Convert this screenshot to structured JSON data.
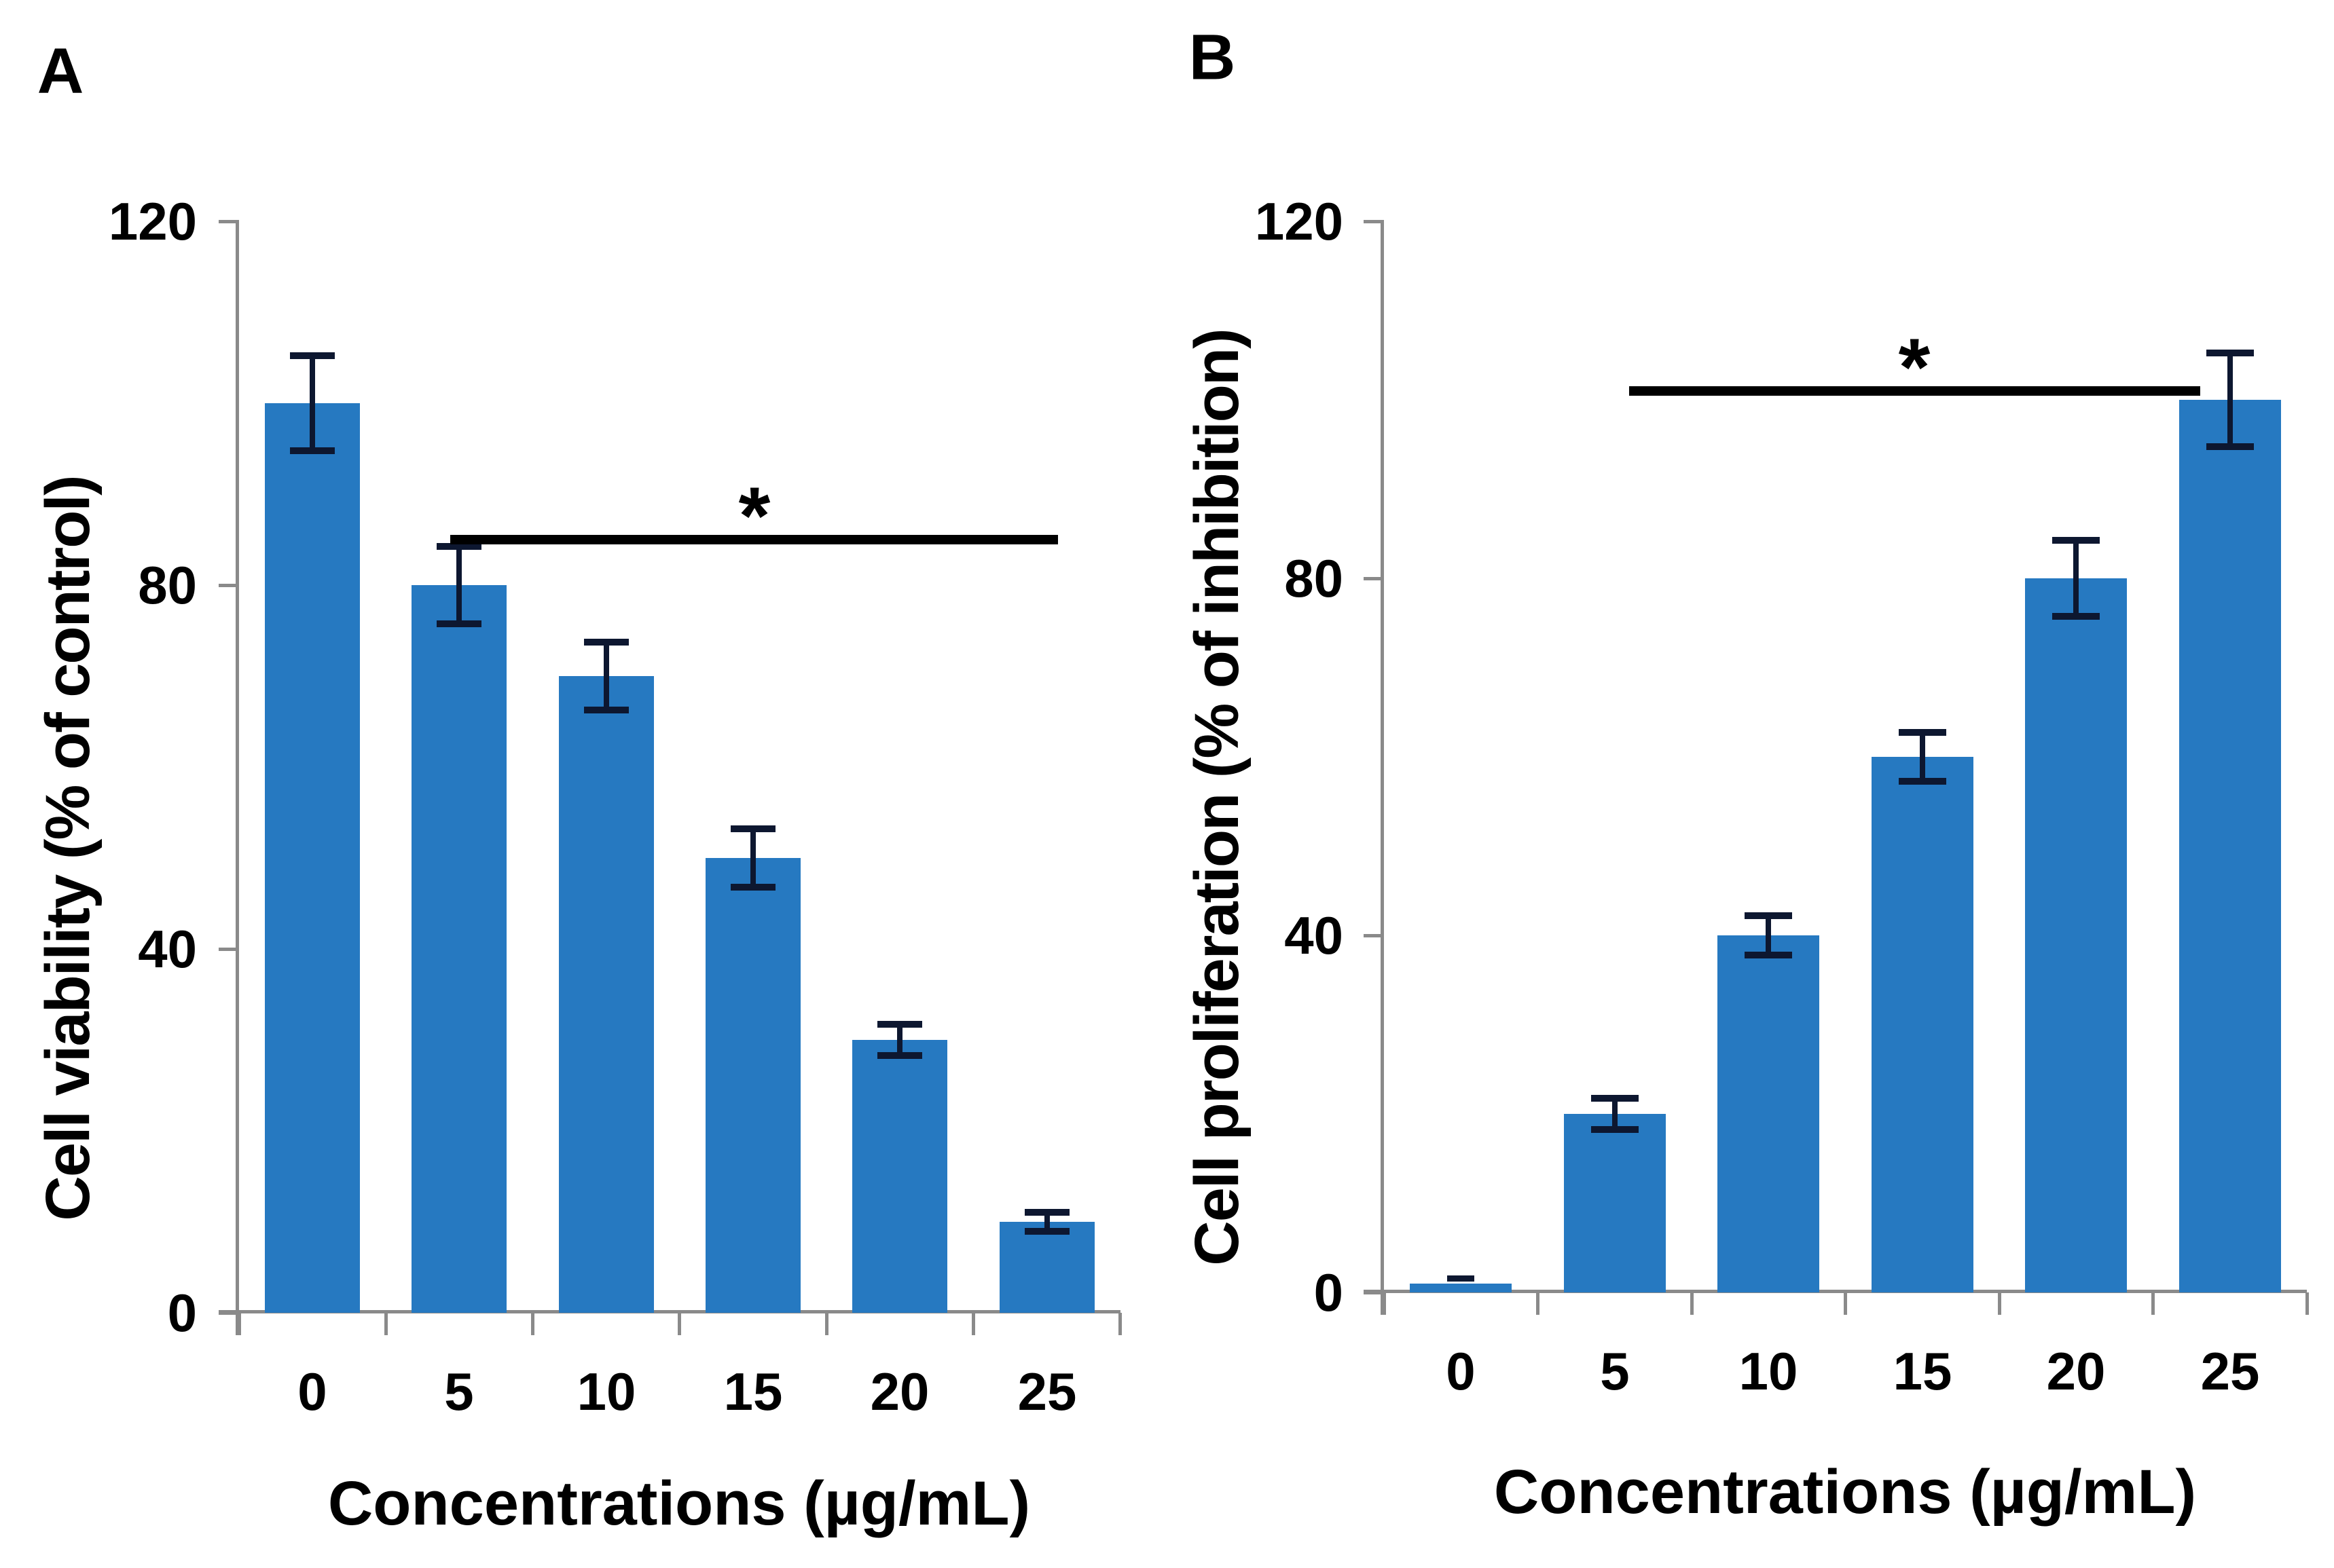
{
  "figure": {
    "background": "#ffffff",
    "bar_color": "#2679C1",
    "error_bar_color": "#0d1730",
    "axis_color": "#8a8a8a",
    "text_color": "#000000",
    "significance_color": "#000000"
  },
  "chart_data": [
    {
      "type": "bar",
      "panel_label": "A",
      "xlabel": "Concentrations (µg/mL)",
      "ylabel": "Cell viability (% of control)",
      "categories": [
        "0",
        "5",
        "10",
        "15",
        "20",
        "25"
      ],
      "values": [
        100,
        80,
        70,
        50,
        30,
        10
      ],
      "errors": [
        5,
        4,
        3.5,
        3,
        1.5,
        0.8
      ],
      "yticks": [
        0,
        40,
        80,
        120
      ],
      "ylim": [
        0,
        120
      ],
      "grid": false,
      "legend": null,
      "significance": {
        "label": "*",
        "from": "5",
        "to": "25",
        "y": 85
      }
    },
    {
      "type": "bar",
      "panel_label": "B",
      "xlabel": "Concentrations (µg/mL)",
      "ylabel": "Cell proliferation (% of inhibition)",
      "categories": [
        "0",
        "5",
        "10",
        "15",
        "20",
        "25"
      ],
      "values": [
        1,
        20,
        40,
        60,
        80,
        100
      ],
      "errors": [
        0.5,
        1.5,
        2,
        2.5,
        4,
        5
      ],
      "yticks": [
        0,
        40,
        80,
        120
      ],
      "ylim": [
        0,
        120
      ],
      "grid": false,
      "legend": null,
      "significance": {
        "label": "*",
        "from": "5",
        "to": "25",
        "y": 101
      }
    }
  ]
}
